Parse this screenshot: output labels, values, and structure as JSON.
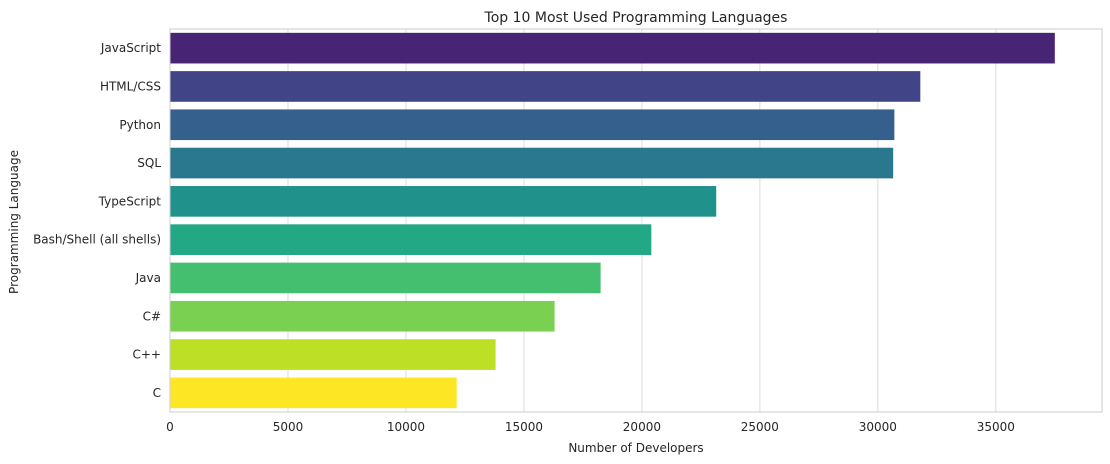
{
  "chart_data": {
    "type": "bar",
    "orientation": "horizontal",
    "title": "Top 10 Most Used Programming Languages",
    "xlabel": "Number of Developers",
    "ylabel": "Programming Language",
    "categories": [
      "JavaScript",
      "HTML/CSS",
      "Python",
      "SQL",
      "TypeScript",
      "Bash/Shell (all shells)",
      "Java",
      "C#",
      "C++",
      "C"
    ],
    "values": [
      37500,
      31800,
      30700,
      30650,
      23150,
      20400,
      18250,
      16300,
      13800,
      12150
    ],
    "xlim": [
      0,
      39500
    ],
    "xticks": [
      0,
      5000,
      10000,
      15000,
      20000,
      25000,
      30000,
      35000
    ],
    "grid": true,
    "colors": [
      "#482475",
      "#414487",
      "#355f8d",
      "#2a788e",
      "#21918c",
      "#22a884",
      "#44bf70",
      "#7ad151",
      "#bddf26",
      "#fde725"
    ]
  }
}
